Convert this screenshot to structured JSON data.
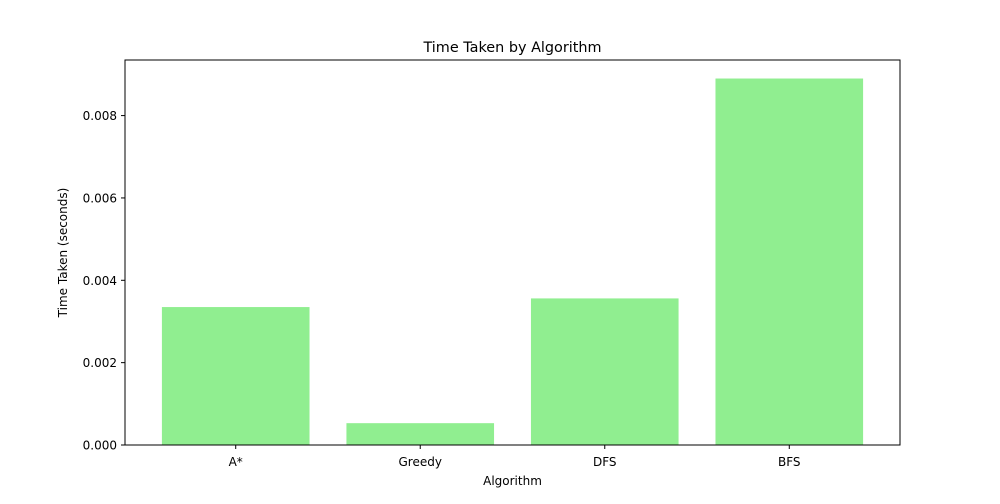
{
  "chart_data": {
    "type": "bar",
    "title": "Time Taken by Algorithm",
    "xlabel": "Algorithm",
    "ylabel": "Time Taken (seconds)",
    "categories": [
      "A*",
      "Greedy",
      "DFS",
      "BFS"
    ],
    "values": [
      0.00335,
      0.00053,
      0.00356,
      0.0089
    ],
    "ylim": [
      0,
      0.00935
    ],
    "yticks": [
      0.0,
      0.002,
      0.004,
      0.006,
      0.008
    ],
    "ytick_labels": [
      "0.000",
      "0.002",
      "0.004",
      "0.006",
      "0.008"
    ],
    "bar_color": "#90ee90",
    "grid": false,
    "legend": "none"
  }
}
